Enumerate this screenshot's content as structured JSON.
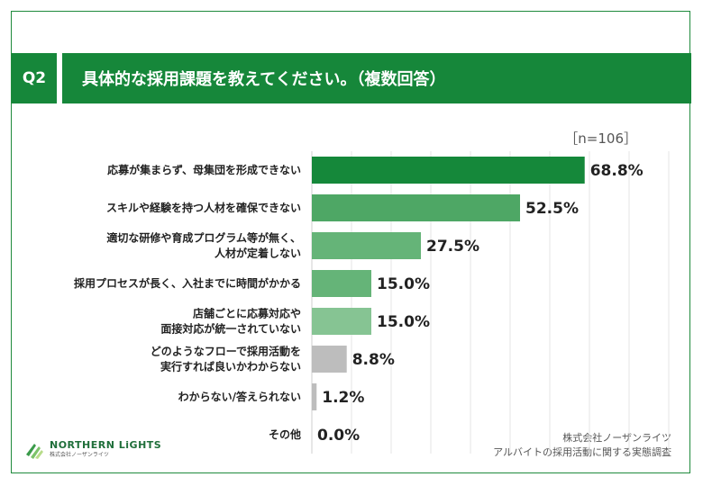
{
  "question": {
    "number": "Q2",
    "title": "具体的な採用課題を教えてください。（複数回答）"
  },
  "sample_size": "［n=106］",
  "chart_data": {
    "type": "bar",
    "orientation": "horizontal",
    "categories": [
      [
        "応募が集まらず、母集団を形成できない"
      ],
      [
        "スキルや経験を持つ人材を確保できない"
      ],
      [
        "適切な研修や育成プログラム等が無く、",
        "人材が定着しない"
      ],
      [
        "採用プロセスが長く、入社までに時間がかかる"
      ],
      [
        "店舗ごとに応募対応や",
        "面接対応が統一されていない"
      ],
      [
        "どのようなフローで採用活動を",
        "実行すれば良いかわからない"
      ],
      [
        "わからない/答えられない"
      ],
      [
        "その他"
      ]
    ],
    "values": [
      68.8,
      52.5,
      27.5,
      15.0,
      15.0,
      8.8,
      1.2,
      0.0
    ],
    "value_labels": [
      "68.8%",
      "52.5%",
      "27.5%",
      "15.0%",
      "15.0%",
      "8.8%",
      "1.2%",
      "0.0%"
    ],
    "bar_colors": [
      "#15883a",
      "#4ea765",
      "#65b478",
      "#65b478",
      "#86c493",
      "#bdbdbd",
      "#bdbdbd",
      "#bdbdbd"
    ],
    "xlim": [
      0,
      100
    ],
    "grid": true
  },
  "source": {
    "line1": "株式会社ノーザンライツ",
    "line2": "アルバイトの採用活動に関する実態調査"
  },
  "logo": {
    "name": "NORTHERN LiGHTS",
    "sub": "株式会社ノーザンライツ",
    "color": "#1f6f3a"
  }
}
